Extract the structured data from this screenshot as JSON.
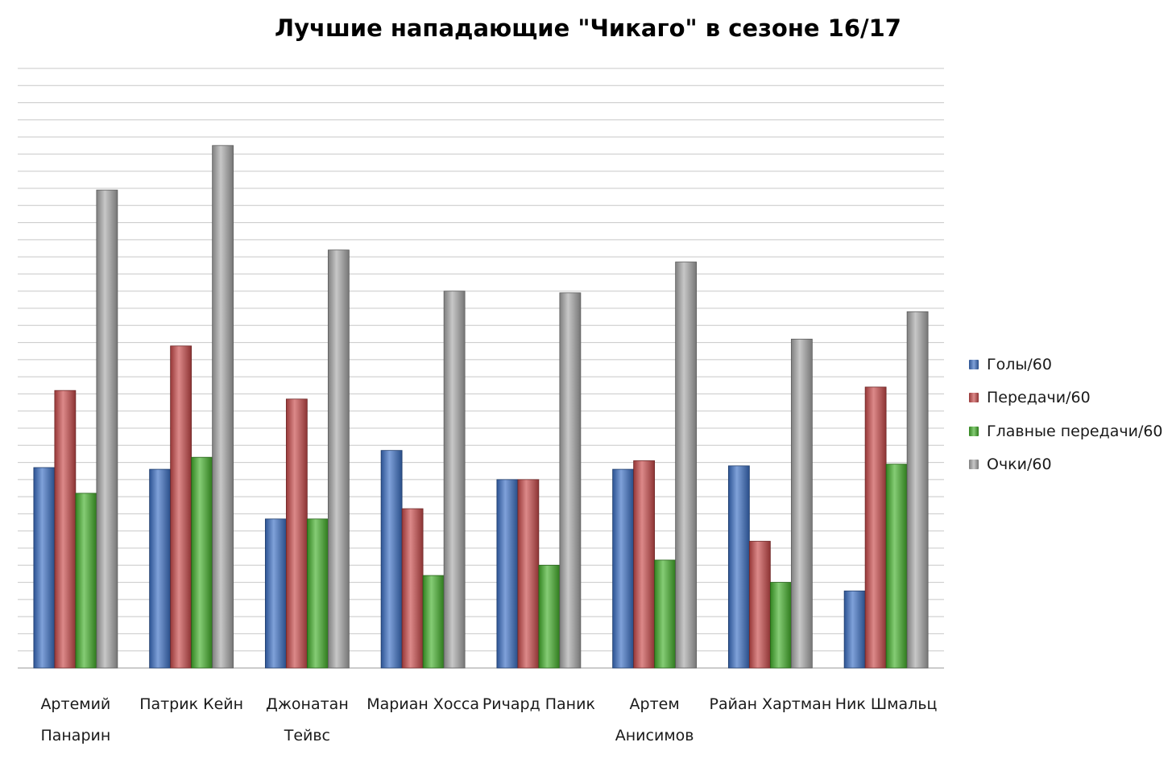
{
  "chart_data": {
    "type": "bar",
    "title": "Лучшие нападающие \"Чикаго\" в сезоне 16/17",
    "xlabel": "",
    "ylabel": "",
    "ylim": [
      0,
      3.5
    ],
    "grid": true,
    "legend_position": "right",
    "categories": [
      "Артемий Панарин",
      "Патрик Кейн",
      "Джонатан Тейвс",
      "Мариан Хосса",
      "Ричард Паник",
      "Артем Анисимов",
      "Райан Хартман",
      "Ник Шмальц"
    ],
    "series": [
      {
        "name": "Голы/60",
        "color": "#3a6fc4",
        "values": [
          1.17,
          1.16,
          0.87,
          1.27,
          1.1,
          1.16,
          1.18,
          0.45
        ]
      },
      {
        "name": "Передачи/60",
        "color": "#c94a4a",
        "values": [
          1.62,
          1.88,
          1.57,
          0.93,
          1.1,
          1.21,
          0.74,
          1.64
        ]
      },
      {
        "name": "Главные передачи/60",
        "color": "#43b02a",
        "values": [
          1.02,
          1.23,
          0.87,
          0.54,
          0.6,
          0.63,
          0.5,
          1.19
        ]
      },
      {
        "name": "Очки/60",
        "color": "#a9a9a9",
        "values": [
          2.79,
          3.05,
          2.44,
          2.2,
          2.19,
          2.37,
          1.92,
          2.08
        ]
      }
    ]
  }
}
